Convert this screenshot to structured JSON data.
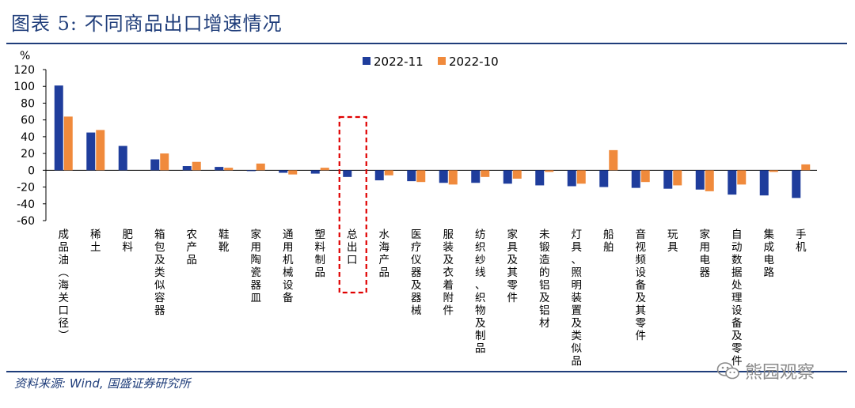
{
  "header": {
    "title": "图表 5:  不同商品出口增速情况"
  },
  "footer": {
    "source": "资料来源: Wind, 国盛证券研究所",
    "watermark": "熊园观察",
    "watermark_icon": "wechat-icon"
  },
  "highlight": {
    "category": "总出口",
    "color": "#e00000"
  },
  "chart_data": {
    "type": "bar",
    "title": "",
    "ylabel": "%",
    "xlabel": "",
    "ylim": [
      -60,
      120
    ],
    "yticks": [
      120,
      100,
      80,
      60,
      40,
      20,
      0,
      -20,
      -40,
      -60
    ],
    "grid": false,
    "legend_position": "top-center",
    "categories": [
      "成品油(海关口径)",
      "稀土",
      "肥料",
      "箱包及类似容器",
      "农产品",
      "鞋靴",
      "家用陶瓷器皿",
      "通用机械设备",
      "塑料制品",
      "总出口",
      "水海产品",
      "医疗仪器及器械",
      "服装及衣着附件",
      "纺织纱线、织物及制品",
      "家具及其零件",
      "未锻造的铝及铝材",
      "灯具、照明装置及类似品",
      "船舶",
      "音视频设备及其零件",
      "玩具",
      "家用电器",
      "自动数据处理设备及零件",
      "集成电路",
      "手机"
    ],
    "series": [
      {
        "name": "2022-11",
        "color": "#1f3d9c",
        "values": [
          101,
          45,
          29,
          13,
          5,
          4,
          -1,
          -3,
          -4,
          -8,
          -12,
          -13,
          -15,
          -15,
          -16,
          -18,
          -19,
          -20,
          -21,
          -22,
          -23,
          -29,
          -30,
          -33
        ]
      },
      {
        "name": "2022-10",
        "color": "#f08a3c",
        "values": [
          64,
          48,
          0,
          20,
          10,
          3,
          8,
          -5,
          3,
          0,
          -6,
          -14,
          -17,
          -8,
          -10,
          -2,
          -16,
          24,
          -14,
          -18,
          -25,
          -17,
          -2,
          7
        ]
      }
    ]
  }
}
